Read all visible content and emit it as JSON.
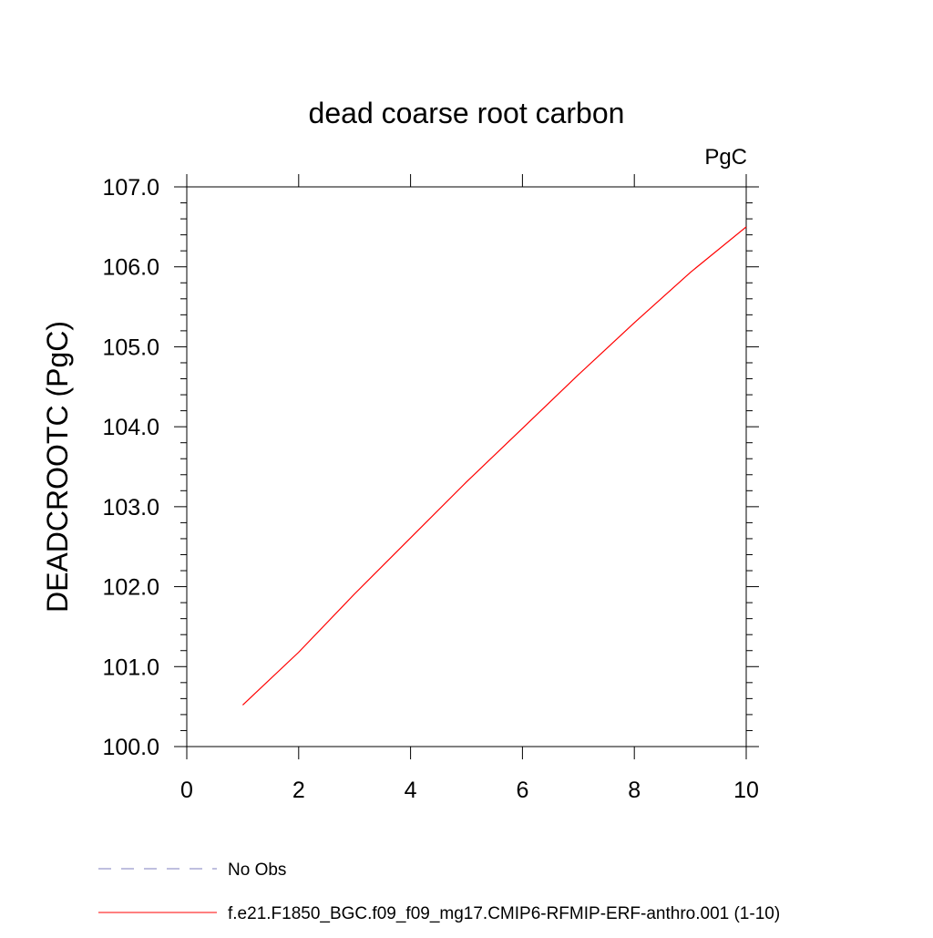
{
  "chart_data": {
    "type": "line",
    "title": "dead coarse root carbon",
    "units_label": "PgC",
    "xlabel": "",
    "ylabel": "DEADCROOTC  (PgC)",
    "xlim": [
      0,
      10
    ],
    "ylim": [
      100.0,
      107.0
    ],
    "x_ticks": [
      0,
      2,
      4,
      6,
      8,
      10
    ],
    "x_tick_labels": [
      "0",
      "2",
      "4",
      "6",
      "8",
      "10"
    ],
    "y_ticks": [
      100.0,
      101.0,
      102.0,
      103.0,
      104.0,
      105.0,
      106.0,
      107.0
    ],
    "y_tick_labels": [
      "100.0",
      "101.0",
      "102.0",
      "103.0",
      "104.0",
      "105.0",
      "106.0",
      "107.0"
    ],
    "grid": false,
    "legend_position": "bottom-left",
    "series": [
      {
        "name": "f.e21.F1850_BGC.f09_f09_mg17.CMIP6-RFMIP-ERF-anthro.001 (1-10)",
        "color": "#ff0000",
        "dash": "solid",
        "x": [
          1,
          2,
          3,
          4,
          5,
          6,
          7,
          8,
          9,
          10
        ],
        "y": [
          100.52,
          101.18,
          101.91,
          102.61,
          103.31,
          103.98,
          104.65,
          105.3,
          105.93,
          106.5
        ]
      }
    ],
    "legend": [
      {
        "label": "No Obs",
        "color": "#7f7fbf",
        "dash": "dashed"
      },
      {
        "label": "f.e21.F1850_BGC.f09_f09_mg17.CMIP6-RFMIP-ERF-anthro.001 (1-10)",
        "color": "#ff0000",
        "dash": "solid"
      }
    ]
  }
}
